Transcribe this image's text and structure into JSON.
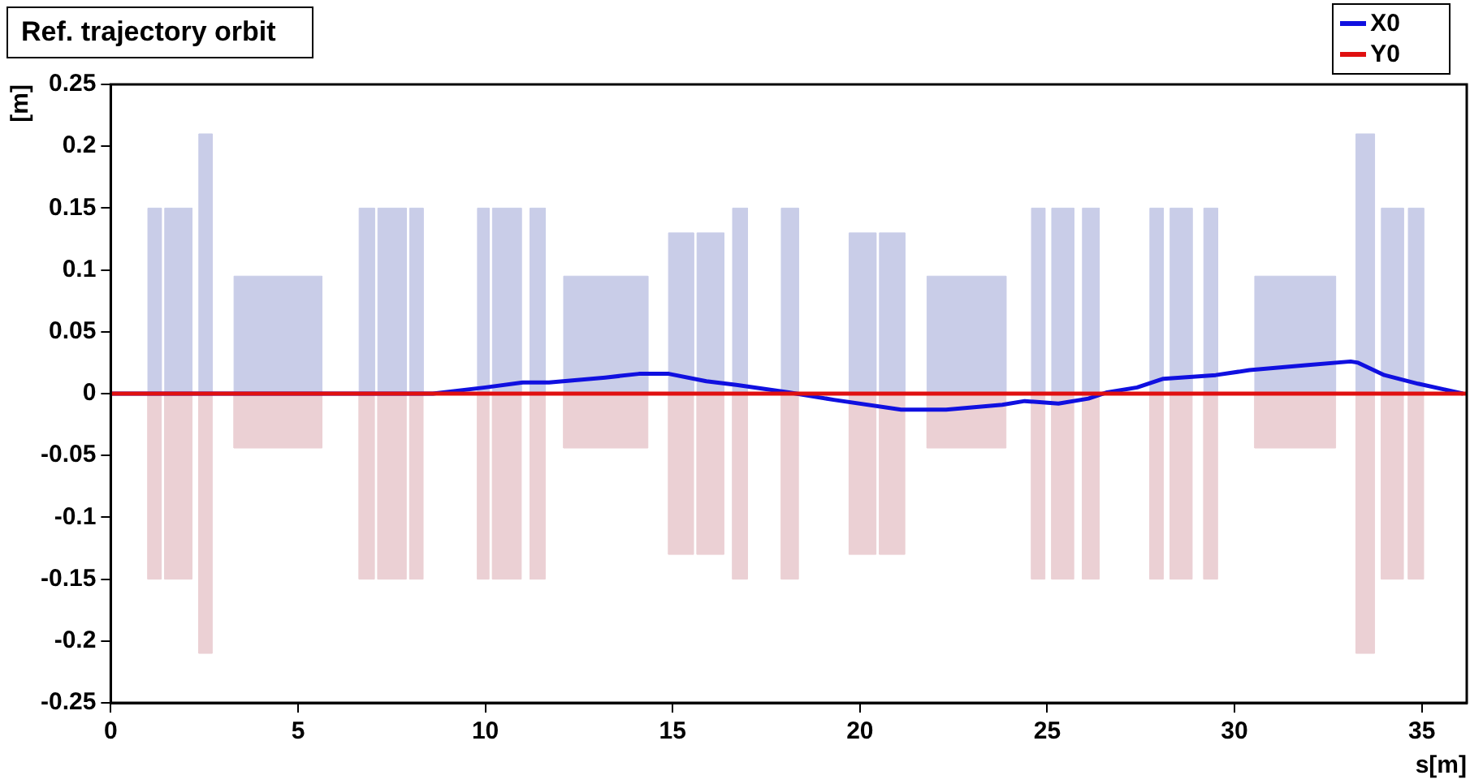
{
  "chart_data": {
    "type": "line",
    "title": "Ref. trajectory orbit",
    "xlabel": "s[m]",
    "ylabel": "[m]",
    "xlim": [
      0,
      36.2
    ],
    "xticks": [
      0,
      5,
      10,
      15,
      20,
      25,
      30,
      35
    ],
    "ylim": [
      -0.25,
      0.25
    ],
    "yticks": [
      -0.25,
      -0.2,
      -0.15,
      -0.1,
      -0.05,
      0,
      0.05,
      0.1,
      0.15,
      0.2,
      0.25
    ],
    "grid": false,
    "legend": "top right",
    "marker": "none",
    "line_style": "solid",
    "series": [
      {
        "type": "area",
        "color": "#c9cde8",
        "x": [
          0.99,
          0.99,
          1.35,
          1.35,
          1.44,
          1.44,
          2.17,
          2.17,
          2.35,
          2.35,
          2.71,
          2.71,
          3.29,
          3.29,
          5.64,
          5.64,
          6.63,
          6.63,
          7.04,
          7.04,
          7.13,
          7.13,
          7.89,
          7.89,
          7.98,
          7.98,
          8.34,
          8.34,
          9.79,
          9.79,
          10.1,
          10.1,
          10.19,
          10.19,
          10.96,
          10.96,
          11.19,
          11.19,
          11.6,
          11.6,
          12.09,
          12.09,
          14.34,
          14.34,
          14.89,
          14.89,
          15.56,
          15.56,
          15.65,
          15.65,
          16.37,
          16.37,
          16.6,
          16.6,
          17.0,
          17.0,
          17.9,
          17.9,
          18.36,
          18.36,
          19.71,
          19.71,
          20.43,
          20.43,
          20.52,
          20.52,
          21.2,
          21.2,
          21.79,
          21.79,
          23.9,
          23.9,
          24.58,
          24.58,
          24.94,
          24.94,
          25.12,
          25.12,
          25.71,
          25.71,
          25.94,
          25.94,
          26.39,
          26.39,
          27.74,
          27.74,
          28.1,
          28.1,
          28.28,
          28.28,
          28.87,
          28.87,
          29.18,
          29.18,
          29.55,
          29.55,
          30.54,
          30.54,
          32.7,
          32.7,
          33.24,
          33.24,
          33.74,
          33.74,
          33.92,
          33.92,
          34.51,
          34.51,
          34.64,
          34.64,
          35.05,
          35.05
        ],
        "values": [
          0,
          0.15,
          0.15,
          0,
          0,
          0.15,
          0.15,
          0,
          0,
          0.21,
          0.21,
          0,
          0,
          0.095,
          0.095,
          0,
          0,
          0.15,
          0.15,
          0,
          0,
          0.15,
          0.15,
          0,
          0,
          0.15,
          0.15,
          0,
          0,
          0.15,
          0.15,
          0,
          0,
          0.15,
          0.15,
          0,
          0,
          0.15,
          0.15,
          0,
          0,
          0.095,
          0.095,
          0,
          0,
          0.13,
          0.13,
          0,
          0,
          0.13,
          0.13,
          0,
          0,
          0.15,
          0.15,
          0,
          0,
          0.15,
          0.15,
          0,
          0,
          0.13,
          0.13,
          0,
          0,
          0.13,
          0.13,
          0,
          0,
          0.095,
          0.095,
          0,
          0,
          0.15,
          0.15,
          0,
          0,
          0.15,
          0.15,
          0,
          0,
          0.15,
          0.15,
          0,
          0,
          0.15,
          0.15,
          0,
          0,
          0.15,
          0.15,
          0,
          0,
          0.15,
          0.15,
          0,
          0,
          0.095,
          0.095,
          0,
          0,
          0.21,
          0.21,
          0,
          0,
          0.15,
          0.15,
          0,
          0,
          0.15,
          0.15,
          0
        ]
      },
      {
        "type": "area",
        "color": "#ebd0d4",
        "x": [
          0.99,
          0.99,
          1.35,
          1.35,
          1.44,
          1.44,
          2.17,
          2.17,
          2.35,
          2.35,
          2.71,
          2.71,
          3.29,
          3.29,
          5.64,
          5.64,
          6.63,
          6.63,
          7.04,
          7.04,
          7.13,
          7.13,
          7.89,
          7.89,
          7.98,
          7.98,
          8.34,
          8.34,
          9.79,
          9.79,
          10.1,
          10.1,
          10.19,
          10.19,
          10.96,
          10.96,
          11.19,
          11.19,
          11.6,
          11.6,
          12.09,
          12.09,
          14.34,
          14.34,
          14.89,
          14.89,
          15.56,
          15.56,
          15.65,
          15.65,
          16.37,
          16.37,
          16.6,
          16.6,
          17.0,
          17.0,
          17.9,
          17.9,
          18.36,
          18.36,
          19.71,
          19.71,
          20.43,
          20.43,
          20.52,
          20.52,
          21.2,
          21.2,
          21.79,
          21.79,
          23.9,
          23.9,
          24.58,
          24.58,
          24.94,
          24.94,
          25.12,
          25.12,
          25.71,
          25.71,
          25.94,
          25.94,
          26.39,
          26.39,
          27.74,
          27.74,
          28.1,
          28.1,
          28.28,
          28.28,
          28.87,
          28.87,
          29.18,
          29.18,
          29.55,
          29.55,
          30.54,
          30.54,
          32.7,
          32.7,
          33.24,
          33.24,
          33.74,
          33.74,
          33.92,
          33.92,
          34.51,
          34.51,
          34.64,
          34.64,
          35.05,
          35.05
        ],
        "values": [
          0,
          -0.15,
          -0.15,
          0,
          0,
          -0.15,
          -0.15,
          0,
          0,
          -0.21,
          -0.21,
          0,
          0,
          -0.044,
          -0.044,
          0,
          0,
          -0.15,
          -0.15,
          0,
          0,
          -0.15,
          -0.15,
          0,
          0,
          -0.15,
          -0.15,
          0,
          0,
          -0.15,
          -0.15,
          0,
          0,
          -0.15,
          -0.15,
          0,
          0,
          -0.15,
          -0.15,
          0,
          0,
          -0.044,
          -0.044,
          0,
          0,
          -0.13,
          -0.13,
          0,
          0,
          -0.13,
          -0.13,
          0,
          0,
          -0.15,
          -0.15,
          0,
          0,
          -0.15,
          -0.15,
          0,
          0,
          -0.13,
          -0.13,
          0,
          0,
          -0.13,
          -0.13,
          0,
          0,
          -0.044,
          -0.044,
          0,
          0,
          -0.15,
          -0.15,
          0,
          0,
          -0.15,
          -0.15,
          0,
          0,
          -0.15,
          -0.15,
          0,
          0,
          -0.15,
          -0.15,
          0,
          0,
          -0.15,
          -0.15,
          0,
          0,
          -0.15,
          -0.15,
          0,
          0,
          -0.044,
          -0.044,
          0,
          0,
          -0.21,
          -0.21,
          0,
          0,
          -0.15,
          -0.15,
          0,
          0,
          -0.15,
          -0.15,
          0
        ]
      },
      {
        "name": "X0",
        "type": "line",
        "color": "#1010e0",
        "x": [
          0,
          8.6,
          10.0,
          11.0,
          11.7,
          13.2,
          14.1,
          14.9,
          15.9,
          16.7,
          18.1,
          19.3,
          21.1,
          22.3,
          23.8,
          24.4,
          25.3,
          26.1,
          26.6,
          27.4,
          28.1,
          29.5,
          30.4,
          31.9,
          33.1,
          33.3,
          34.0,
          34.9,
          36.1
        ],
        "values": [
          0,
          0,
          0.005,
          0.009,
          0.009,
          0.013,
          0.016,
          0.016,
          0.01,
          0.007,
          0.001,
          -0.005,
          -0.013,
          -0.013,
          -0.009,
          -0.006,
          -0.008,
          -0.004,
          0.001,
          0.005,
          0.012,
          0.015,
          0.019,
          0.023,
          0.026,
          0.025,
          0.015,
          0.008,
          0
        ]
      },
      {
        "name": "Y0",
        "type": "line",
        "color": "#e01010",
        "x": [
          0,
          36.2
        ],
        "values": [
          0,
          0
        ]
      }
    ]
  }
}
